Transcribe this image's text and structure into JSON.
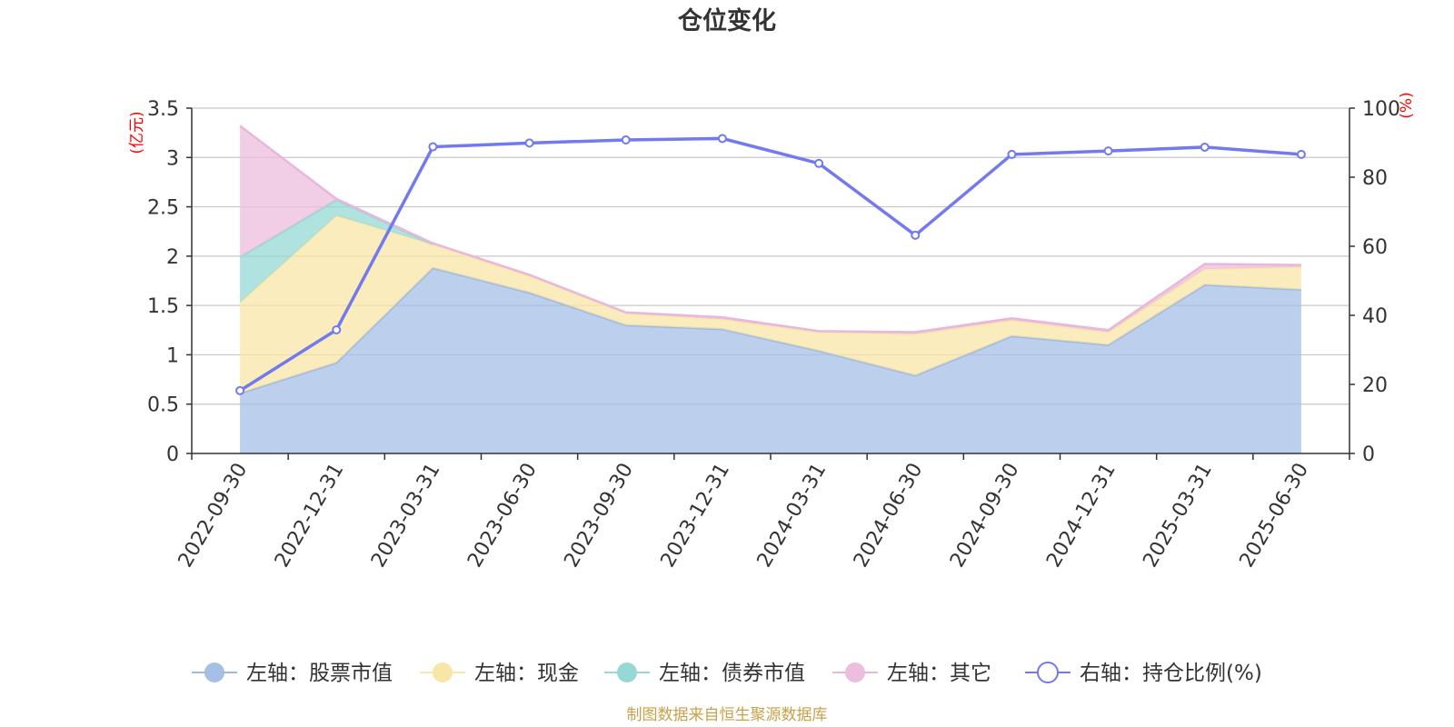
{
  "chart_data": {
    "type": "area",
    "title": "仓位变化",
    "categories": [
      "2022-09-30",
      "2022-12-31",
      "2023-03-31",
      "2023-06-30",
      "2023-09-30",
      "2023-12-31",
      "2024-03-31",
      "2024-06-30",
      "2024-09-30",
      "2024-12-31",
      "2025-03-31",
      "2025-06-30"
    ],
    "left_axis": {
      "unit": "(亿元)",
      "ylim": [
        0,
        3.5
      ],
      "ticks": [
        "0",
        "0.5",
        "1",
        "1.5",
        "2",
        "2.5",
        "3",
        "3.5"
      ]
    },
    "right_axis": {
      "unit": "(%)",
      "ylim": [
        0,
        100
      ],
      "ticks": [
        "0",
        "20",
        "40",
        "60",
        "80",
        "100"
      ]
    },
    "stacked_series": [
      {
        "name": "左轴：股票市值",
        "color": "#a5bfe6",
        "line_color": "#9db8e2",
        "values": [
          0.61,
          0.92,
          1.88,
          1.63,
          1.3,
          1.26,
          1.04,
          0.79,
          1.19,
          1.1,
          1.71,
          1.66
        ]
      },
      {
        "name": "左轴：现金",
        "color": "#f8e6a6",
        "line_color": "#f8e8ac",
        "values": [
          0.92,
          1.49,
          0.24,
          0.17,
          0.12,
          0.1,
          0.19,
          0.42,
          0.16,
          0.13,
          0.16,
          0.23
        ]
      },
      {
        "name": "左轴：债券市值",
        "color": "#96d8d6",
        "line_color": "#96d8d6",
        "values": [
          0.46,
          0.16,
          0,
          0,
          0,
          0,
          0,
          0,
          0,
          0,
          0,
          0
        ]
      },
      {
        "name": "左轴：其它",
        "color": "#ecbedd",
        "line_color": "#e9b6dc",
        "values": [
          1.33,
          0.01,
          0.01,
          0.01,
          0.01,
          0.02,
          0.01,
          0.02,
          0.02,
          0.02,
          0.05,
          0.02
        ]
      }
    ],
    "line_series": {
      "name": "右轴：持仓比例(%)",
      "color": "#7379ee",
      "values": [
        18.2,
        35.8,
        88.8,
        89.9,
        90.8,
        91.2,
        84.0,
        63.2,
        86.6,
        87.6,
        88.7,
        86.6
      ]
    },
    "grid": true,
    "legend": "bottom"
  },
  "source_note": "制图数据来自恒生聚源数据库"
}
